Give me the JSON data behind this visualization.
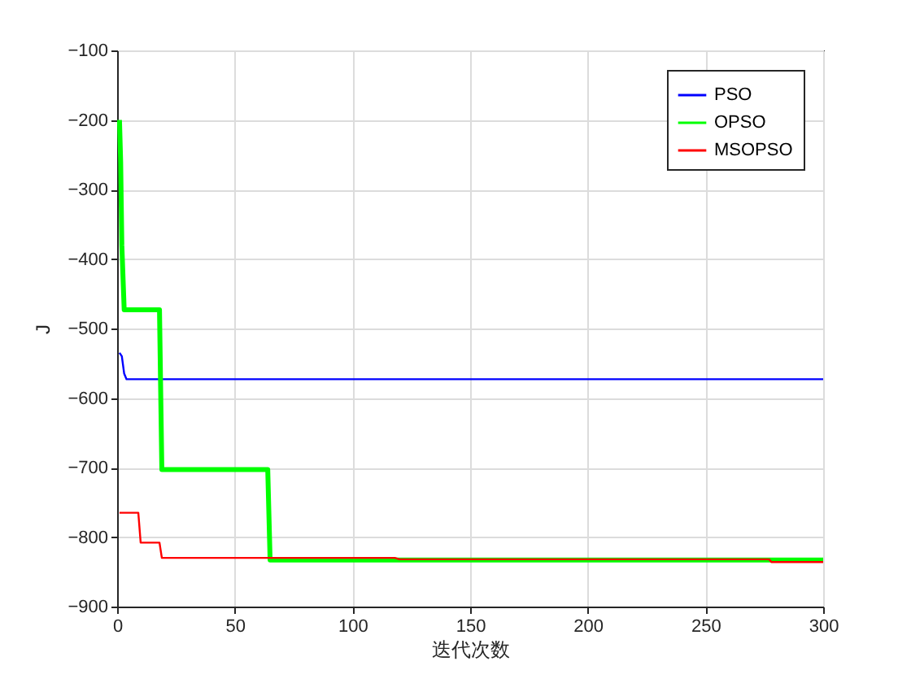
{
  "chart_data": {
    "type": "line",
    "xlabel": "迭代次数",
    "ylabel": "J",
    "xlim": [
      0,
      300
    ],
    "xticks": [
      0,
      50,
      100,
      150,
      200,
      250,
      300
    ],
    "ylim": [
      -900,
      -100
    ],
    "yticks": [
      -900,
      -800,
      -700,
      -600,
      -500,
      -400,
      -300,
      -200,
      -100
    ],
    "grid": true,
    "legend": "top right",
    "marker": "none",
    "line_style": "solid",
    "series": [
      {
        "name": "PSO",
        "color": "#0000ff",
        "x": [
          1,
          2,
          3,
          4,
          300
        ],
        "values": [
          -535,
          -540,
          -565,
          -573,
          -573
        ]
      },
      {
        "name": "OPSO",
        "color": "#00ff00",
        "x": [
          1,
          1.5,
          2,
          3,
          18,
          19,
          64,
          65,
          300
        ],
        "values": [
          -200,
          -260,
          -380,
          -473,
          -473,
          -703,
          -703,
          -833,
          -833
        ]
      },
      {
        "name": "MSOPSO",
        "color": "#ff0000",
        "x": [
          1,
          9,
          10,
          18,
          19,
          118,
          120,
          277,
          278,
          300
        ],
        "values": [
          -765,
          -765,
          -808,
          -808,
          -830,
          -830,
          -832,
          -832,
          -836,
          -836
        ]
      }
    ]
  }
}
